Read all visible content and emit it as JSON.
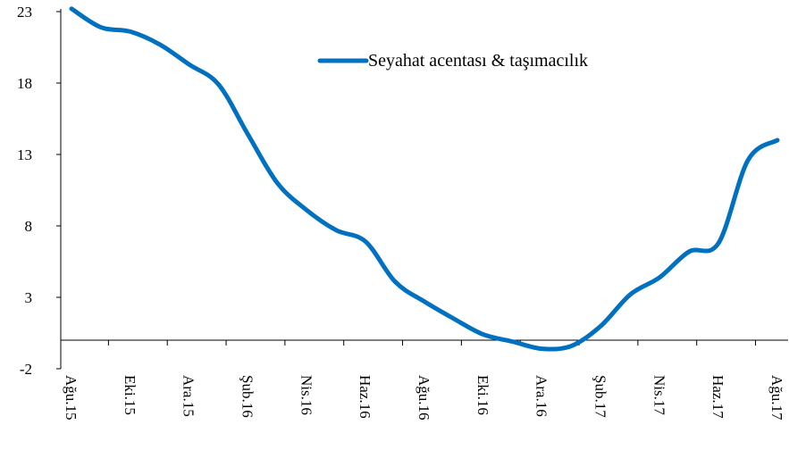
{
  "chart_data": {
    "type": "line",
    "categories": [
      "Ağu.15",
      null,
      "Eki.15",
      null,
      "Ara.15",
      null,
      "Şub.16",
      null,
      "Nis.16",
      null,
      "Haz.16",
      null,
      "Ağu.16",
      null,
      "Eki.16",
      null,
      "Ara.16",
      null,
      "Şub.17",
      null,
      "Nis.17",
      null,
      "Haz.17",
      null,
      "Ağu.17"
    ],
    "series": [
      {
        "name": "Seyahat acentası & taşımacılık",
        "color": "#0070c0",
        "values": [
          23.2,
          21.9,
          21.6,
          20.7,
          19.3,
          17.9,
          14.4,
          11.0,
          9.1,
          7.7,
          6.9,
          4.1,
          2.7,
          1.5,
          0.4,
          -0.1,
          -0.6,
          -0.4,
          1.0,
          3.2,
          4.4,
          6.2,
          6.8,
          12.6,
          14.0
        ]
      }
    ],
    "ylim": [
      -2,
      23
    ],
    "yticks": [
      -2,
      3,
      8,
      13,
      18,
      23
    ]
  }
}
